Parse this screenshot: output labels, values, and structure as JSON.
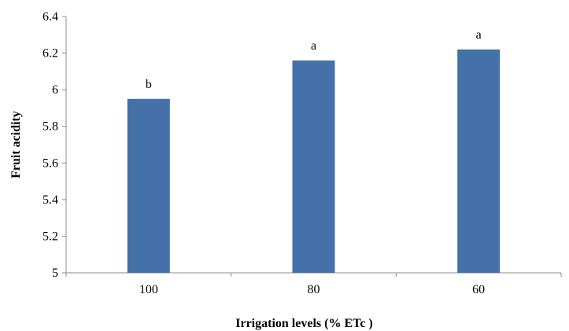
{
  "chart_data": {
    "type": "bar",
    "categories": [
      "100",
      "80",
      "60"
    ],
    "values": [
      5.95,
      6.16,
      6.22
    ],
    "data_labels": [
      "b",
      "a",
      "a"
    ],
    "xlabel": "Irrigation levels (% ETc )",
    "ylabel": "Fruit acidity",
    "ylim": [
      5,
      6.4
    ],
    "yticks": [
      "5",
      "5.2",
      "5.4",
      "5.6",
      "5.8",
      "6",
      "6.2",
      "6.4"
    ],
    "grid": false,
    "legend": "none",
    "bar_color": "#4472a8"
  }
}
